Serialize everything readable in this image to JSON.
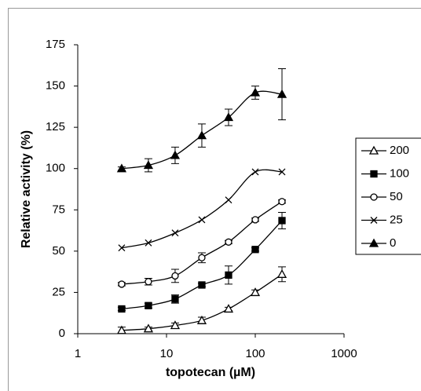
{
  "chart_data": {
    "type": "line",
    "xscale": "log",
    "x_label": "topotecan (µM)",
    "y_label": "Relative activity (%)",
    "x": [
      3.125,
      6.25,
      12.5,
      25,
      50,
      100,
      200
    ],
    "xlim": [
      1,
      1000
    ],
    "xticks": [
      1,
      10,
      100,
      1000
    ],
    "ylim": [
      0,
      175
    ],
    "yticks": [
      0,
      25,
      50,
      75,
      100,
      125,
      150,
      175
    ],
    "legend": "right",
    "series": [
      {
        "name": "200",
        "color": "#000000",
        "marker": "triangle-open",
        "values": [
          2,
          3,
          5,
          8,
          15,
          25,
          36
        ],
        "errors": [
          2,
          1,
          1.5,
          2,
          1,
          1.5,
          4.5
        ]
      },
      {
        "name": "100",
        "color": "#000000",
        "marker": "square-filled",
        "values": [
          15,
          17,
          21,
          29.5,
          35.5,
          51,
          68.5
        ],
        "errors": [
          1,
          1.5,
          2.5,
          1,
          5.5,
          1,
          5
        ]
      },
      {
        "name": "50",
        "color": "#000000",
        "marker": "circle-open",
        "values": [
          30,
          31.5,
          35,
          46,
          55.5,
          69,
          80
        ],
        "errors": [
          1,
          2,
          4,
          3,
          1,
          1,
          1
        ]
      },
      {
        "name": "25",
        "color": "#000000",
        "marker": "x",
        "values": [
          52,
          55,
          61,
          69,
          81,
          98,
          98
        ]
      },
      {
        "name": "0",
        "color": "#000000",
        "marker": "triangle-filled",
        "values": [
          100,
          102,
          108,
          120,
          131,
          146,
          145
        ],
        "errors": [
          1,
          4,
          5,
          7,
          5,
          4,
          15.5
        ]
      }
    ]
  }
}
